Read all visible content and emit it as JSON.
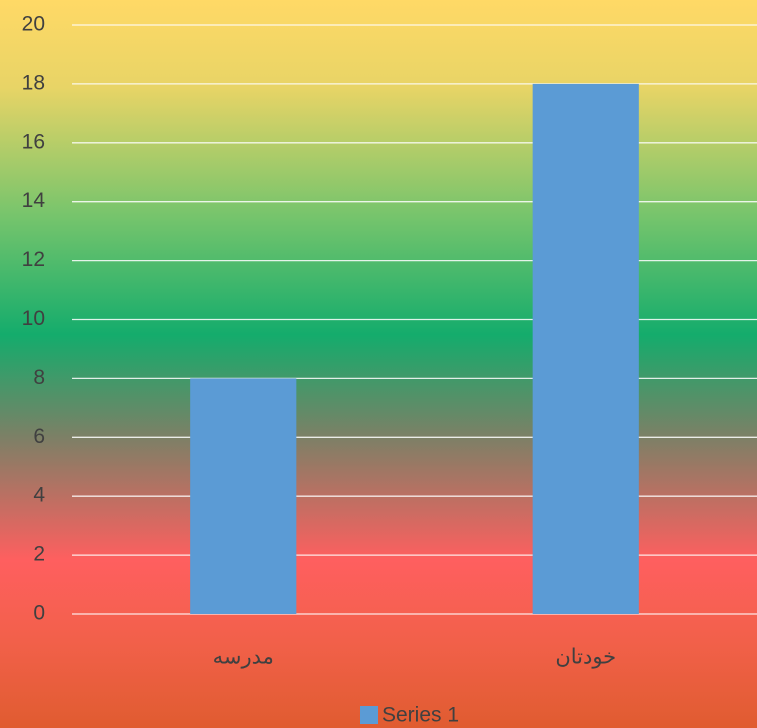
{
  "chart_data": {
    "type": "bar",
    "categories": [
      "مدرسه",
      "خودتان"
    ],
    "series": [
      {
        "name": "Series 1",
        "color": "#5b9bd5",
        "values": [
          8,
          18
        ]
      }
    ],
    "ylim": [
      0,
      20
    ],
    "yticks": [
      0,
      2,
      4,
      6,
      8,
      10,
      12,
      14,
      16,
      18,
      20
    ],
    "grid": true,
    "legend": "bottom"
  }
}
